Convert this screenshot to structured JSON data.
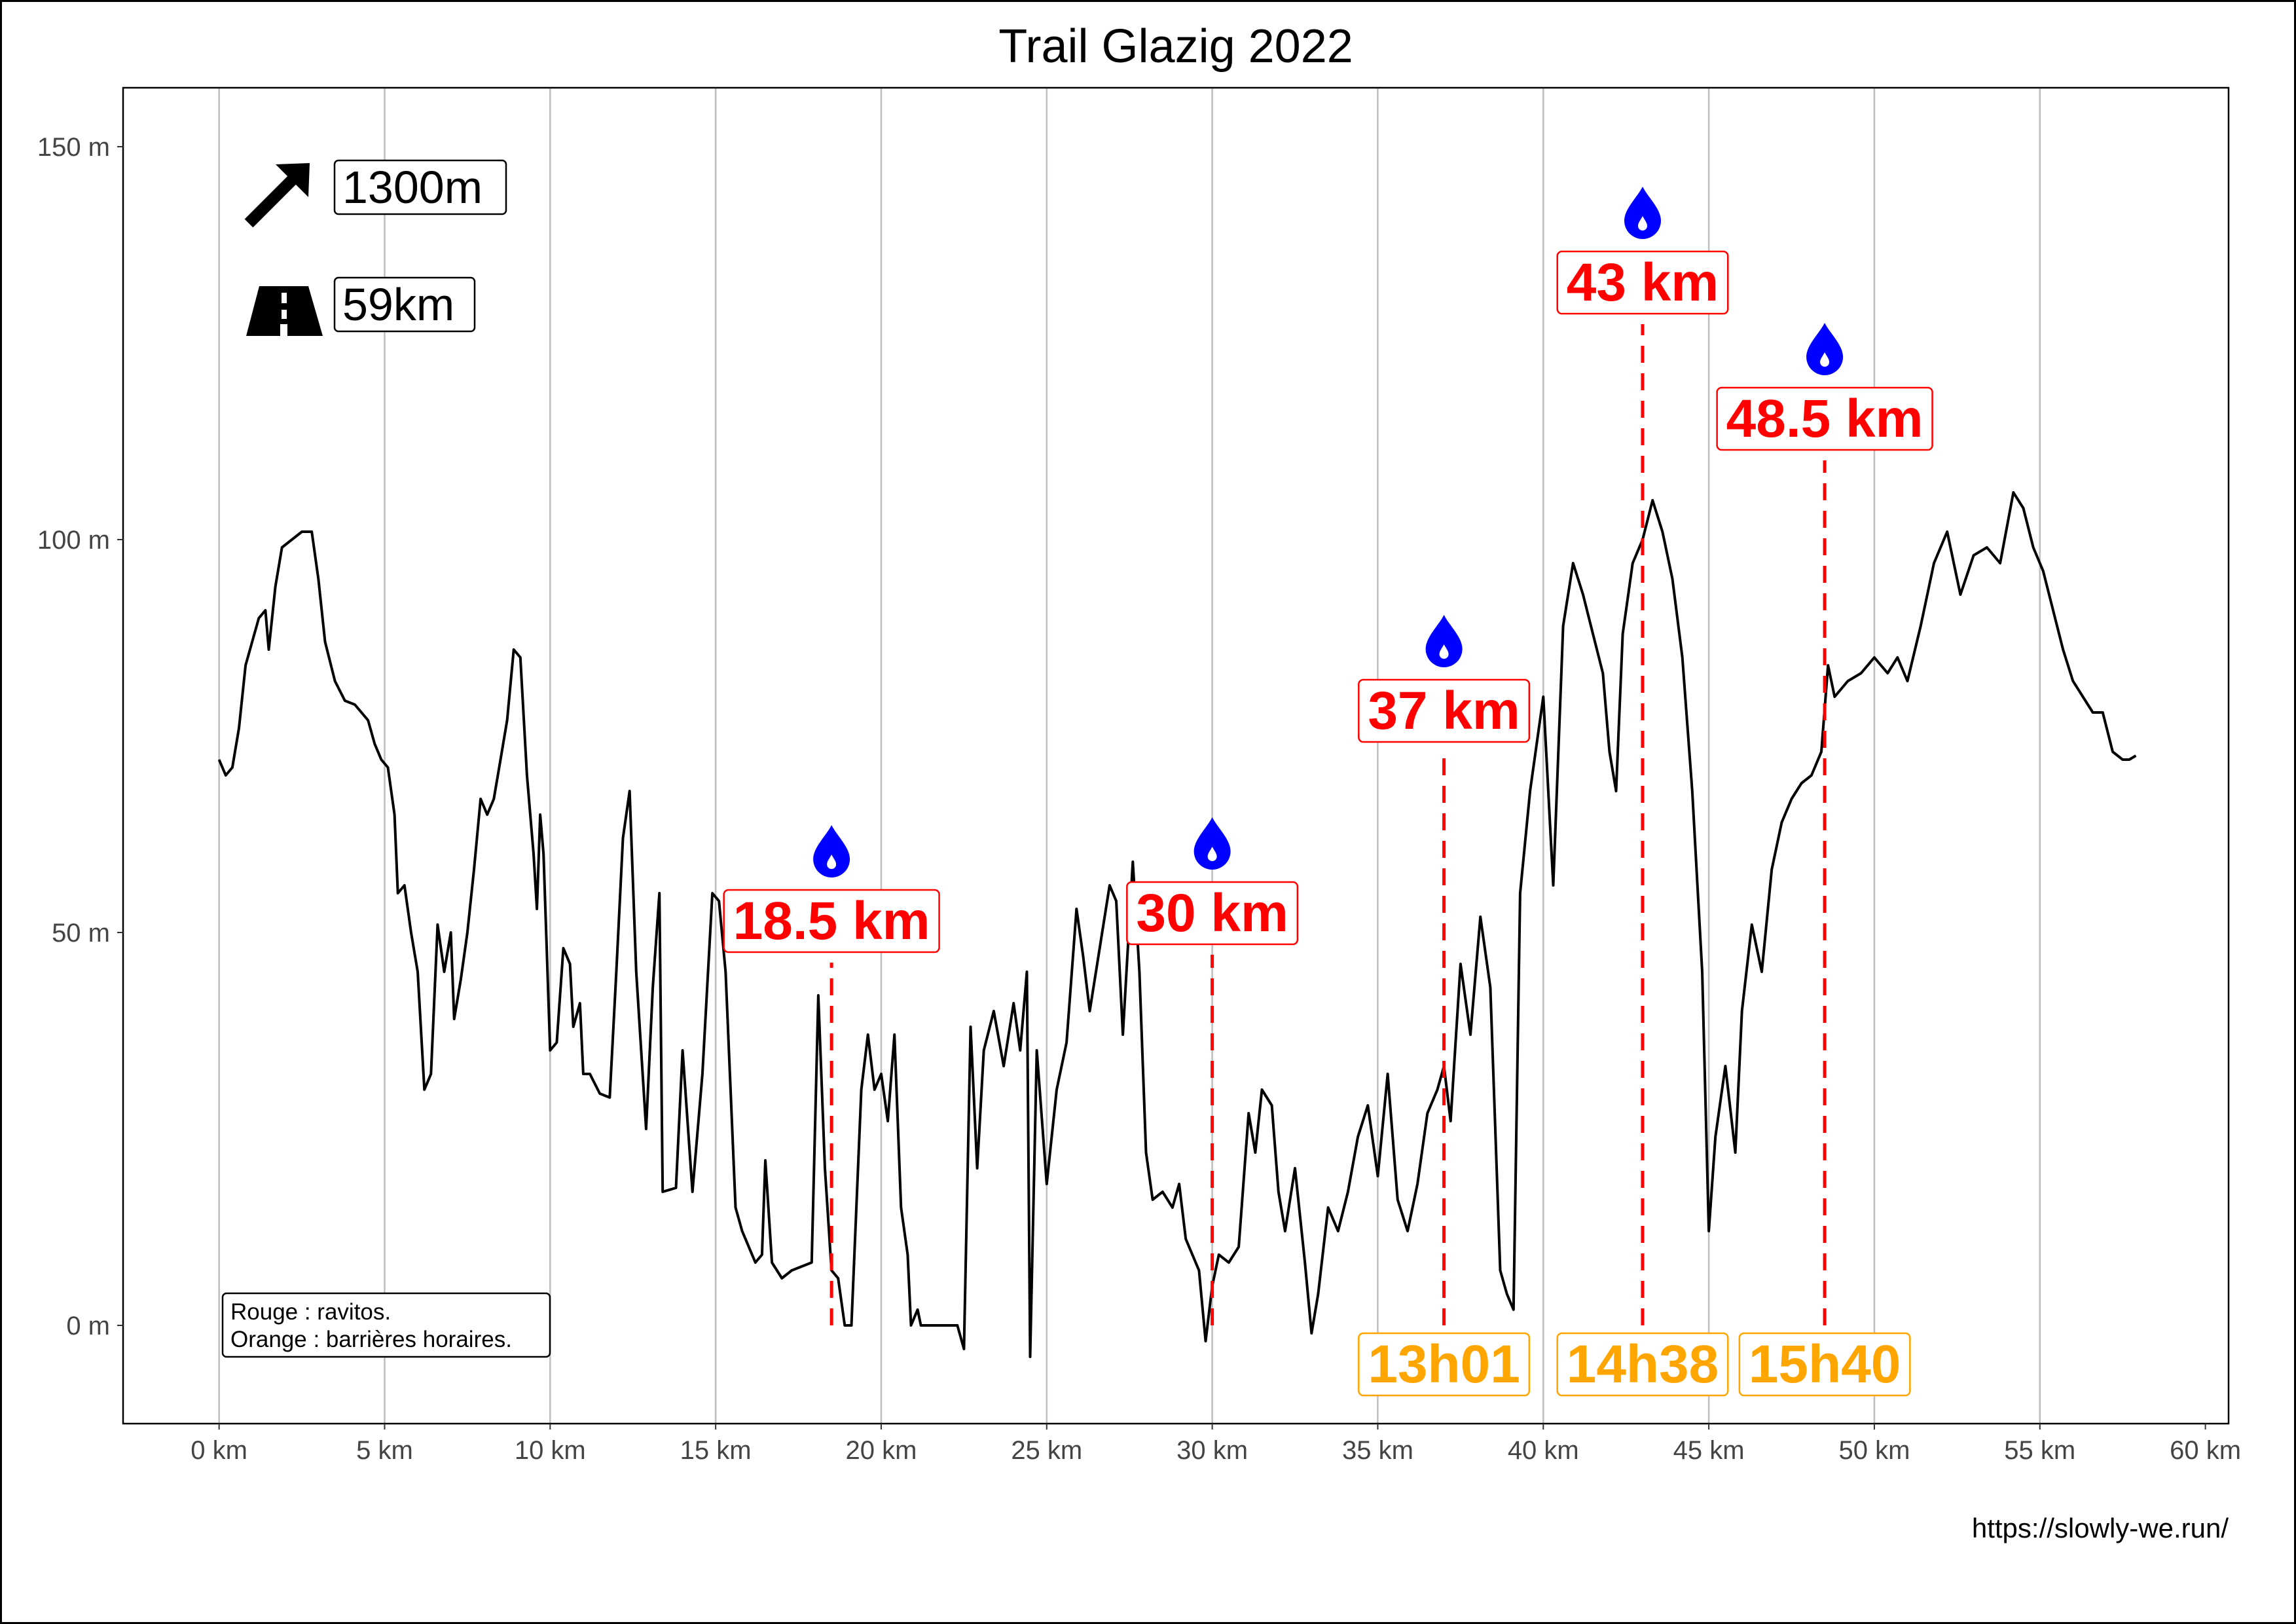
{
  "chart_data": {
    "type": "line",
    "title": "Trail Glazig 2022",
    "xlabel": "",
    "ylabel": "",
    "xlim": [
      -2.9,
      60.7
    ],
    "ylim": [
      -12.5,
      157.5
    ],
    "x_ticks": [
      0,
      5,
      10,
      15,
      20,
      25,
      30,
      35,
      40,
      45,
      50,
      55,
      60
    ],
    "x_tick_labels": [
      "0 km",
      "5 km",
      "10 km",
      "15 km",
      "20 km",
      "25 km",
      "30 km",
      "35 km",
      "40 km",
      "45 km",
      "50 km",
      "55 km",
      "60 km"
    ],
    "y_ticks": [
      0,
      50,
      100,
      150
    ],
    "y_tick_labels": [
      "0 m",
      "50 m",
      "100 m",
      "150 m"
    ],
    "grid": "vertical",
    "series": [
      {
        "color": "#000000",
        "points": [
          [
            0,
            72
          ],
          [
            0.2,
            70
          ],
          [
            0.4,
            71
          ],
          [
            0.6,
            76
          ],
          [
            0.8,
            84
          ],
          [
            1.0,
            87
          ],
          [
            1.2,
            90
          ],
          [
            1.4,
            91
          ],
          [
            1.5,
            86
          ],
          [
            1.7,
            94
          ],
          [
            1.9,
            99
          ],
          [
            2.2,
            100
          ],
          [
            2.5,
            101
          ],
          [
            2.8,
            101
          ],
          [
            3.0,
            95
          ],
          [
            3.2,
            87
          ],
          [
            3.5,
            82
          ],
          [
            3.8,
            79.5
          ],
          [
            4.1,
            79
          ],
          [
            4.5,
            77
          ],
          [
            4.7,
            74
          ],
          [
            4.9,
            72
          ],
          [
            5.1,
            71
          ],
          [
            5.3,
            65
          ],
          [
            5.4,
            55
          ],
          [
            5.6,
            56
          ],
          [
            5.8,
            50
          ],
          [
            6.0,
            45
          ],
          [
            6.2,
            30
          ],
          [
            6.4,
            32
          ],
          [
            6.6,
            51
          ],
          [
            6.8,
            45
          ],
          [
            7.0,
            50
          ],
          [
            7.1,
            39
          ],
          [
            7.3,
            44
          ],
          [
            7.5,
            50
          ],
          [
            7.7,
            58
          ],
          [
            7.9,
            67
          ],
          [
            8.1,
            65
          ],
          [
            8.3,
            67
          ],
          [
            8.5,
            72
          ],
          [
            8.7,
            77
          ],
          [
            8.9,
            86
          ],
          [
            9.1,
            85
          ],
          [
            9.3,
            70
          ],
          [
            9.5,
            60
          ],
          [
            9.6,
            53
          ],
          [
            9.7,
            65
          ],
          [
            9.8,
            60
          ],
          [
            10.0,
            35
          ],
          [
            10.2,
            36
          ],
          [
            10.4,
            48
          ],
          [
            10.6,
            46
          ],
          [
            10.7,
            38
          ],
          [
            10.9,
            41
          ],
          [
            11.0,
            32
          ],
          [
            11.2,
            32
          ],
          [
            11.5,
            29.5
          ],
          [
            11.8,
            29
          ],
          [
            12.0,
            45
          ],
          [
            12.2,
            62
          ],
          [
            12.4,
            68
          ],
          [
            12.6,
            45
          ],
          [
            12.9,
            25
          ],
          [
            13.1,
            43
          ],
          [
            13.3,
            55
          ],
          [
            13.4,
            17
          ],
          [
            13.8,
            17.5
          ],
          [
            14.0,
            35
          ],
          [
            14.3,
            17
          ],
          [
            14.6,
            32
          ],
          [
            14.9,
            55
          ],
          [
            15.1,
            54
          ],
          [
            15.3,
            45
          ],
          [
            15.6,
            15
          ],
          [
            15.8,
            12
          ],
          [
            16.0,
            10
          ],
          [
            16.2,
            8
          ],
          [
            16.4,
            9
          ],
          [
            16.5,
            21
          ],
          [
            16.7,
            8
          ],
          [
            17.0,
            6
          ],
          [
            17.3,
            7
          ],
          [
            17.6,
            7.5
          ],
          [
            17.9,
            8
          ],
          [
            18.1,
            42
          ],
          [
            18.3,
            20
          ],
          [
            18.5,
            7
          ],
          [
            18.7,
            6
          ],
          [
            18.9,
            0
          ],
          [
            19.1,
            0
          ],
          [
            19.4,
            30
          ],
          [
            19.6,
            37
          ],
          [
            19.8,
            30
          ],
          [
            20.0,
            32
          ],
          [
            20.2,
            26
          ],
          [
            20.4,
            37
          ],
          [
            20.6,
            15
          ],
          [
            20.8,
            9
          ],
          [
            20.9,
            0
          ],
          [
            21.1,
            2
          ],
          [
            21.2,
            0
          ],
          [
            21.6,
            0
          ],
          [
            22.0,
            0
          ],
          [
            22.3,
            0
          ],
          [
            22.5,
            -3
          ],
          [
            22.7,
            38
          ],
          [
            22.9,
            20
          ],
          [
            23.1,
            35
          ],
          [
            23.4,
            40
          ],
          [
            23.7,
            33
          ],
          [
            24.0,
            41
          ],
          [
            24.2,
            35
          ],
          [
            24.4,
            45
          ],
          [
            24.5,
            -4
          ],
          [
            24.7,
            35
          ],
          [
            25.0,
            18
          ],
          [
            25.3,
            30
          ],
          [
            25.6,
            36
          ],
          [
            25.9,
            53
          ],
          [
            26.1,
            47
          ],
          [
            26.3,
            40
          ],
          [
            26.6,
            48
          ],
          [
            26.9,
            56
          ],
          [
            27.1,
            54
          ],
          [
            27.3,
            37
          ],
          [
            27.6,
            59
          ],
          [
            27.8,
            45
          ],
          [
            28.0,
            22
          ],
          [
            28.2,
            16
          ],
          [
            28.5,
            17
          ],
          [
            28.8,
            15
          ],
          [
            29.0,
            18
          ],
          [
            29.2,
            11
          ],
          [
            29.4,
            9
          ],
          [
            29.6,
            7
          ],
          [
            29.8,
            -2
          ],
          [
            30.0,
            5
          ],
          [
            30.2,
            9
          ],
          [
            30.5,
            8
          ],
          [
            30.8,
            10
          ],
          [
            31.1,
            27
          ],
          [
            31.3,
            22
          ],
          [
            31.5,
            30
          ],
          [
            31.8,
            28
          ],
          [
            32.0,
            17
          ],
          [
            32.2,
            12
          ],
          [
            32.5,
            20
          ],
          [
            32.8,
            8
          ],
          [
            33.0,
            -1
          ],
          [
            33.2,
            4
          ],
          [
            33.5,
            15
          ],
          [
            33.8,
            12
          ],
          [
            34.1,
            17
          ],
          [
            34.4,
            24
          ],
          [
            34.7,
            28
          ],
          [
            35.0,
            19
          ],
          [
            35.3,
            32
          ],
          [
            35.6,
            16
          ],
          [
            35.9,
            12
          ],
          [
            36.2,
            18
          ],
          [
            36.5,
            27
          ],
          [
            36.8,
            30
          ],
          [
            37.0,
            33
          ],
          [
            37.2,
            26
          ],
          [
            37.5,
            46
          ],
          [
            37.8,
            37
          ],
          [
            38.1,
            52
          ],
          [
            38.4,
            43
          ],
          [
            38.7,
            7
          ],
          [
            38.9,
            4
          ],
          [
            39.1,
            2
          ],
          [
            39.3,
            55
          ],
          [
            39.6,
            68
          ],
          [
            40.0,
            80
          ],
          [
            40.3,
            56
          ],
          [
            40.6,
            89
          ],
          [
            40.9,
            97
          ],
          [
            41.2,
            93
          ],
          [
            41.5,
            88
          ],
          [
            41.8,
            83
          ],
          [
            42.0,
            73
          ],
          [
            42.2,
            68
          ],
          [
            42.4,
            88
          ],
          [
            42.7,
            97
          ],
          [
            43.0,
            100
          ],
          [
            43.3,
            105
          ],
          [
            43.6,
            101
          ],
          [
            43.9,
            95
          ],
          [
            44.2,
            85
          ],
          [
            44.5,
            68
          ],
          [
            44.8,
            45
          ],
          [
            45.0,
            12
          ],
          [
            45.2,
            24
          ],
          [
            45.5,
            33
          ],
          [
            45.8,
            22
          ],
          [
            46.0,
            40
          ],
          [
            46.3,
            51
          ],
          [
            46.6,
            45
          ],
          [
            46.9,
            58
          ],
          [
            47.2,
            64
          ],
          [
            47.5,
            67
          ],
          [
            47.8,
            69
          ],
          [
            48.1,
            70
          ],
          [
            48.4,
            73
          ],
          [
            48.6,
            84
          ],
          [
            48.8,
            80
          ],
          [
            49.2,
            82
          ],
          [
            49.6,
            83
          ],
          [
            50.0,
            85
          ],
          [
            50.4,
            83
          ],
          [
            50.7,
            85
          ],
          [
            51.0,
            82
          ],
          [
            51.4,
            89
          ],
          [
            51.8,
            97
          ],
          [
            52.2,
            101
          ],
          [
            52.6,
            93
          ],
          [
            53.0,
            98
          ],
          [
            53.4,
            99
          ],
          [
            53.8,
            97
          ],
          [
            54.2,
            106
          ],
          [
            54.5,
            104
          ],
          [
            54.8,
            99
          ],
          [
            55.1,
            96
          ],
          [
            55.4,
            91
          ],
          [
            55.7,
            86
          ],
          [
            56.0,
            82
          ],
          [
            56.3,
            80
          ],
          [
            56.6,
            78
          ],
          [
            56.9,
            78
          ],
          [
            57.2,
            73
          ],
          [
            57.5,
            72
          ],
          [
            57.7,
            72
          ],
          [
            57.9,
            72.5
          ]
        ]
      }
    ],
    "aid_stations": [
      {
        "km": 18.5,
        "label": "18.5 km"
      },
      {
        "km": 30,
        "label": "30 km"
      },
      {
        "km": 37,
        "label": "37 km"
      },
      {
        "km": 43,
        "label": "43 km"
      },
      {
        "km": 48.5,
        "label": "48.5 km"
      }
    ],
    "time_barriers": [
      {
        "km": 37,
        "label": "13h01"
      },
      {
        "km": 43,
        "label": "14h38"
      },
      {
        "km": 48.5,
        "label": "15h40"
      }
    ],
    "summary": {
      "elevation_gain": "1300m",
      "distance": "59km",
      "elevation_icon": "arrow-up-right-icon",
      "distance_icon": "road-icon"
    },
    "legend": {
      "line1": "Rouge : ravitos.",
      "line2": "Orange : barrières horaires."
    },
    "source": "https://slowly-we.run/",
    "colors": {
      "profile": "#000000",
      "aid": "#ff0000",
      "barrier": "#ffa500",
      "water": "#0000ff",
      "grid": "#bebebe"
    }
  }
}
